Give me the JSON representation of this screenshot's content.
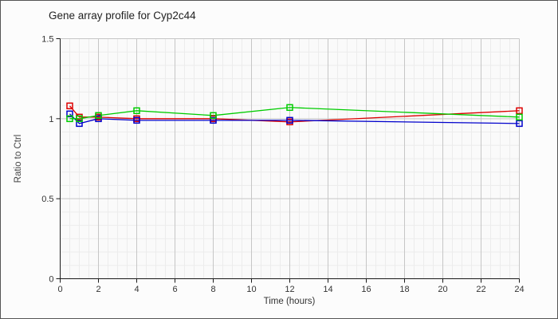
{
  "chart_data": {
    "type": "line",
    "title": "Gene array profile for Cyp2c44",
    "xlabel": "Time (hours)",
    "ylabel": "Ratio to Ctrl",
    "xlim": [
      0,
      24
    ],
    "ylim": [
      0,
      1.5
    ],
    "xticks": [
      0,
      2,
      4,
      6,
      8,
      10,
      12,
      14,
      16,
      18,
      20,
      22,
      24
    ],
    "yticks": [
      0,
      0.5,
      1,
      1.5
    ],
    "x_minor_step": 0.5,
    "y_minor_divisions": 18,
    "grid": true,
    "legend": "none",
    "marker": "open-square",
    "x": [
      0.5,
      1,
      2,
      4,
      8,
      12,
      24
    ],
    "series": [
      {
        "name": "series-red",
        "color": "#dd0000",
        "values": [
          1.08,
          1.01,
          1.01,
          1.0,
          1.0,
          0.98,
          1.05
        ]
      },
      {
        "name": "series-blue",
        "color": "#0000cc",
        "values": [
          1.03,
          0.97,
          1.0,
          0.99,
          0.99,
          0.99,
          0.97
        ]
      },
      {
        "name": "series-green",
        "color": "#00cc00",
        "values": [
          1.0,
          1.0,
          1.02,
          1.05,
          1.02,
          1.07,
          1.01
        ]
      }
    ],
    "colors": {
      "background": "#fcfcfc",
      "plot_background": "#fafafa",
      "grid_minor": "#ececec",
      "grid_major": "#c6c6c6",
      "axis": "#1a1a1a",
      "title_text": "#222222",
      "tick_text": "#333333",
      "axis_label_text": "#444444",
      "frame_border": "#555555"
    }
  }
}
